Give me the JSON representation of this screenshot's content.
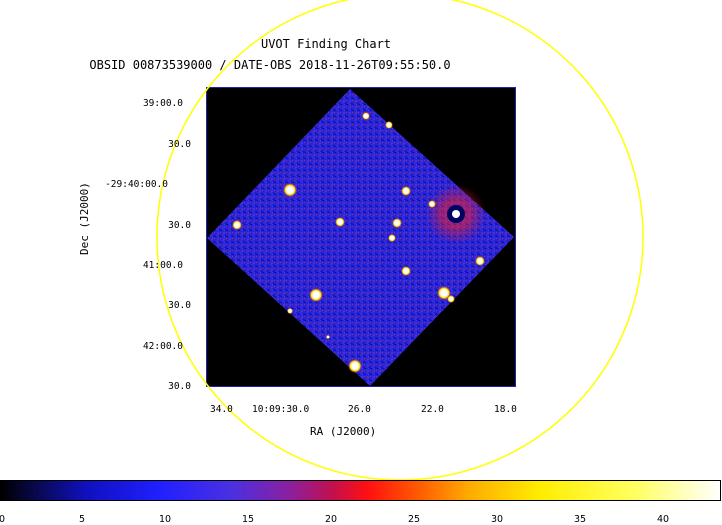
{
  "title": {
    "line1": "UVOT Finding Chart",
    "line2": "OBSID 00873539000 / DATE-OBS 2018-11-26T09:55:50.0"
  },
  "axes": {
    "xlabel": "RA (J2000)",
    "ylabel": "Dec (J2000)",
    "x_ticks": [
      "34.0",
      "10:09:30.0",
      "26.0",
      "22.0",
      "18.0"
    ],
    "y_ticks": [
      "39:00.0",
      "30.0",
      "-29:40:00.0",
      "30.0",
      "41:00.0",
      "30.0",
      "42:00.0",
      "30.0"
    ]
  },
  "colorbar": {
    "ticks": [
      "0",
      "5",
      "10",
      "15",
      "20",
      "25",
      "30",
      "35",
      "40"
    ]
  },
  "colors": {
    "circle": "#ffff00",
    "frame": "#2222aa",
    "background_field": "#2020d0"
  }
}
